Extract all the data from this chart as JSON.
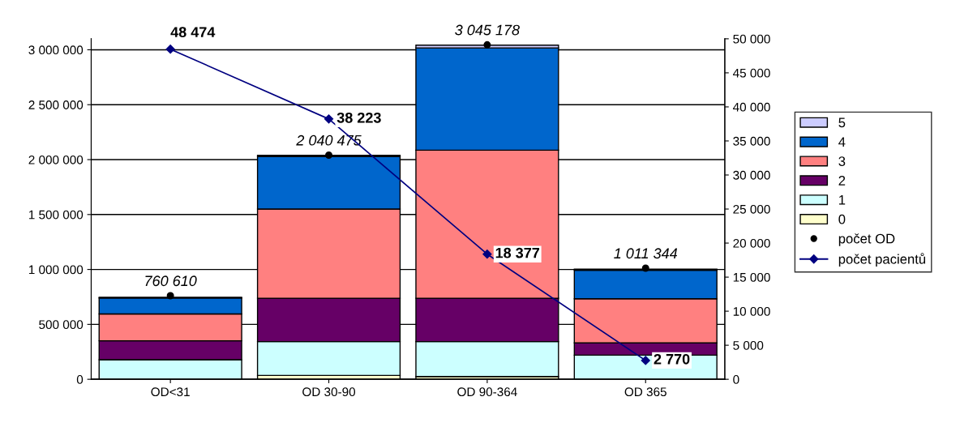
{
  "chart_data": {
    "type": "bar",
    "stacked": true,
    "categories": [
      "OD<31",
      "OD 30-90",
      "OD 90-364",
      "OD 365"
    ],
    "series": [
      {
        "name": "0",
        "color": "#ffffcc",
        "values": [
          null,
          35000,
          25000,
          null
        ]
      },
      {
        "name": "1",
        "color": "#ccffff",
        "values": [
          178000,
          308000,
          318000,
          220000
        ]
      },
      {
        "name": "2",
        "color": "#660066",
        "values": [
          173000,
          395000,
          395000,
          111000
        ]
      },
      {
        "name": "3",
        "color": "#ff8080",
        "values": [
          244000,
          812000,
          1348000,
          402000
        ]
      },
      {
        "name": "4",
        "color": "#0066cc",
        "values": [
          146000,
          479000,
          931000,
          260000
        ]
      },
      {
        "name": "5",
        "color": "#ccccff",
        "values": [
          5000,
          10000,
          25000,
          10000
        ]
      },
      {
        "name": "počet OD",
        "type": "scatter",
        "color": "#000000",
        "values": [
          760610,
          2040475,
          3045178,
          1011344
        ],
        "value_labels": [
          "760 610",
          "2 040 475",
          "3 045 178",
          "1 011 344"
        ]
      },
      {
        "name": "počet pacientů",
        "type": "line",
        "axis": "y2",
        "color": "#000080",
        "marker": "diamond",
        "values": [
          48474,
          38223,
          18377,
          2770
        ],
        "value_labels": [
          "48 474",
          "38 223",
          "18 377",
          "2 770"
        ]
      }
    ],
    "ylim": [
      0,
      3100000
    ],
    "yticks": [
      {
        "value": 0,
        "label": "0"
      },
      {
        "value": 500000,
        "label": "500 000"
      },
      {
        "value": 1000000,
        "label": "1 000 000"
      },
      {
        "value": 1500000,
        "label": "1 500 000"
      },
      {
        "value": 2000000,
        "label": "2 000 000"
      },
      {
        "value": 2500000,
        "label": "2 500 000"
      },
      {
        "value": 3000000,
        "label": "3 000 000"
      }
    ],
    "y2lim": [
      0,
      50000
    ],
    "y2ticks": [
      {
        "value": 0,
        "label": "0"
      },
      {
        "value": 5000,
        "label": "5 000"
      },
      {
        "value": 10000,
        "label": "10 000"
      },
      {
        "value": 15000,
        "label": "15 000"
      },
      {
        "value": 20000,
        "label": "20 000"
      },
      {
        "value": 25000,
        "label": "25 000"
      },
      {
        "value": 30000,
        "label": "30 000"
      },
      {
        "value": 35000,
        "label": "35 000"
      },
      {
        "value": 40000,
        "label": "40 000"
      },
      {
        "value": 45000,
        "label": "45 000"
      },
      {
        "value": 50000,
        "label": "50 000"
      }
    ],
    "grid": "y",
    "legend": "right"
  }
}
